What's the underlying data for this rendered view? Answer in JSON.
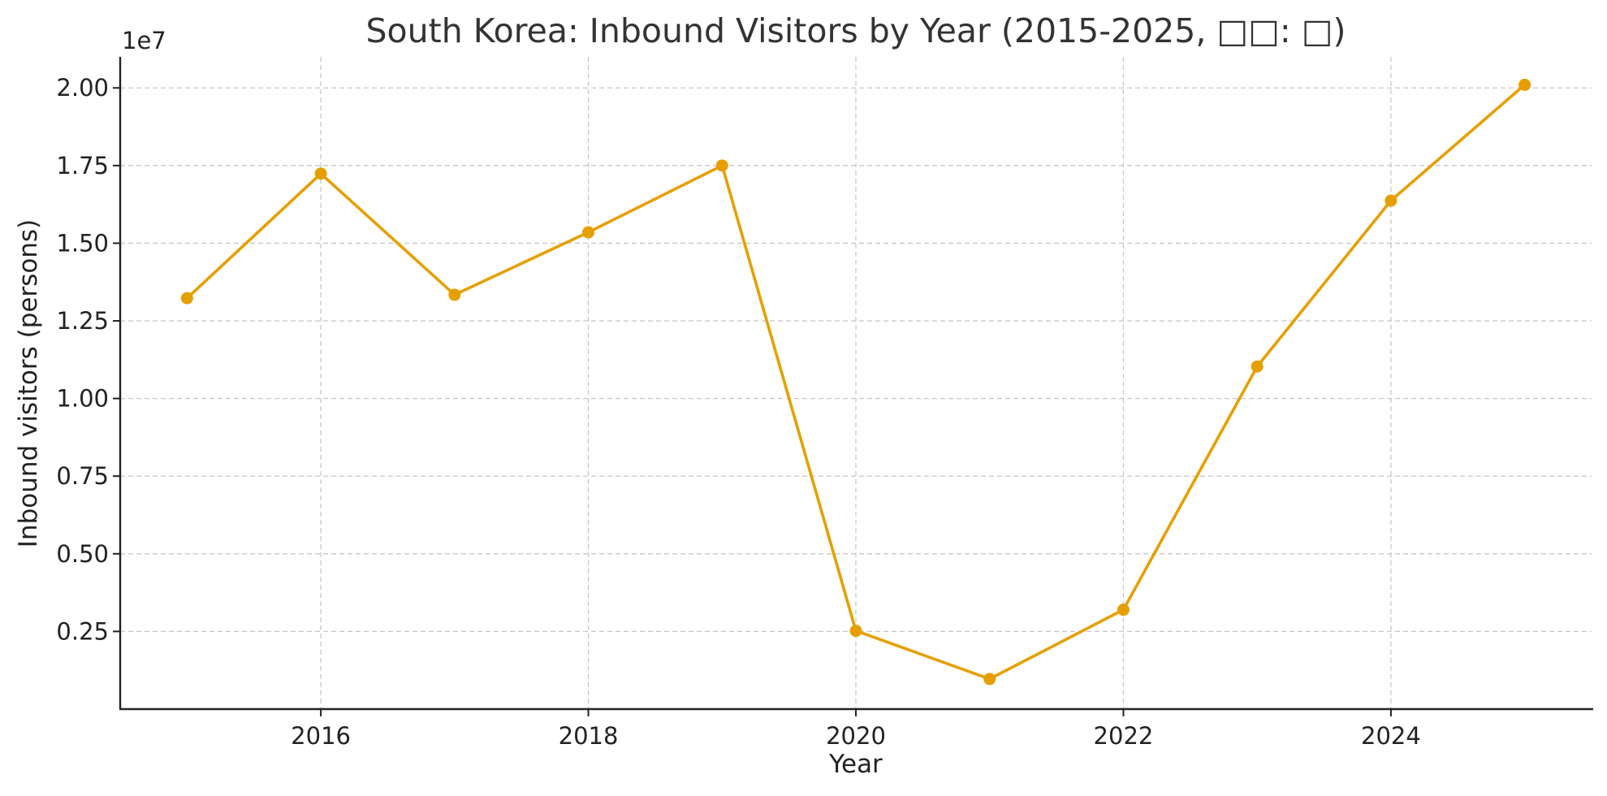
{
  "chart_data": {
    "type": "line",
    "title": "South Korea: Inbound Visitors by Year (2015-2025, □□: □)",
    "xlabel": "Year",
    "ylabel": "Inbound visitors (persons)",
    "y_offset_label": "1e7",
    "x": [
      2015,
      2016,
      2017,
      2018,
      2019,
      2020,
      2021,
      2022,
      2023,
      2024,
      2025
    ],
    "series": [
      {
        "values": [
          13230000,
          17240000,
          13340000,
          15350000,
          17500000,
          2520000,
          970000,
          3200000,
          11030000,
          16370000,
          20100000
        ],
        "color": "#E69F00"
      }
    ],
    "xlim": [
      2014.5,
      2025.5
    ],
    "ylim": [
      0,
      21000000
    ],
    "x_ticks": [
      2016,
      2018,
      2020,
      2022,
      2024
    ],
    "x_tick_labels": [
      "2016",
      "2018",
      "2020",
      "2022",
      "2024"
    ],
    "y_ticks": [
      2500000,
      5000000,
      7500000,
      10000000,
      12500000,
      15000000,
      17500000,
      20000000
    ],
    "y_tick_labels": [
      "0.25",
      "0.50",
      "0.75",
      "1.00",
      "1.25",
      "1.50",
      "1.75",
      "2.00"
    ],
    "grid": true,
    "legend": false
  }
}
